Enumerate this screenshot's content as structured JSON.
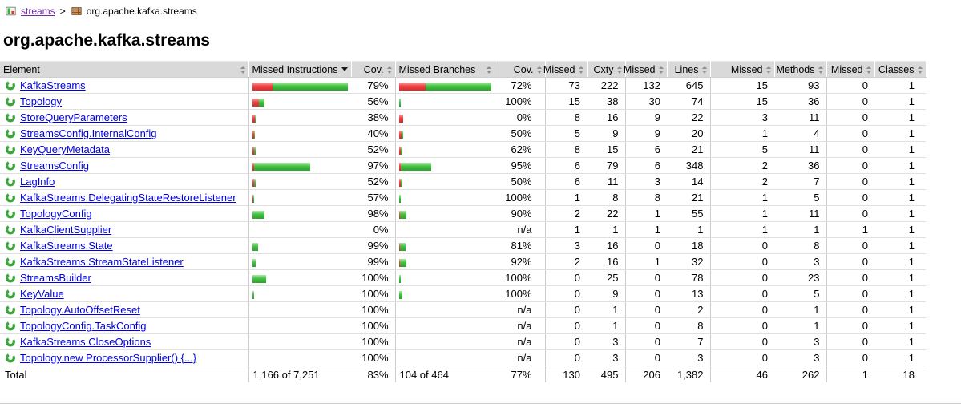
{
  "breadcrumb": {
    "session_label": "streams",
    "separator": ">",
    "package_label": "org.apache.kafka.streams"
  },
  "page": {
    "title": "org.apache.kafka.streams"
  },
  "table": {
    "colors": {
      "bar_red": "#e03c3c",
      "bar_green": "#35b135",
      "link": "#0000e0",
      "visited_link": "#6f2da8",
      "header_bg": "#d9d9d9"
    },
    "headers": {
      "element": "Element",
      "missed_instructions": "Missed Instructions",
      "instr_cov": "Cov.",
      "missed_branches": "Missed Branches",
      "branch_cov": "Cov.",
      "missed_cxty": "Missed",
      "cxty": "Cxty",
      "missed_lines": "Missed",
      "lines": "Lines",
      "missed_methods": "Missed",
      "methods": "Methods",
      "missed_classes": "Missed",
      "classes": "Classes"
    },
    "sort": {
      "column": "missed_instructions",
      "direction": "desc"
    },
    "rows": [
      {
        "name": "KafkaStreams",
        "instr_bar": {
          "red": 25,
          "green": 94
        },
        "instr_cov": "79%",
        "branch_bar": {
          "red": 33,
          "green": 82
        },
        "branch_cov": "72%",
        "missed_cxty": "73",
        "cxty": "222",
        "missed_lines": "132",
        "lines": "645",
        "missed_methods": "15",
        "methods": "93",
        "missed_classes": "0",
        "classes": "1"
      },
      {
        "name": "Topology",
        "instr_bar": {
          "red": 8,
          "green": 7
        },
        "instr_cov": "56%",
        "branch_bar": {
          "red": 0,
          "green": 2
        },
        "branch_cov": "100%",
        "missed_cxty": "15",
        "cxty": "38",
        "missed_lines": "30",
        "lines": "74",
        "missed_methods": "15",
        "methods": "36",
        "missed_classes": "0",
        "classes": "1"
      },
      {
        "name": "StoreQueryParameters",
        "instr_bar": {
          "red": 3,
          "green": 1
        },
        "instr_cov": "38%",
        "branch_bar": {
          "red": 5,
          "green": 0
        },
        "branch_cov": "0%",
        "missed_cxty": "8",
        "cxty": "16",
        "missed_lines": "9",
        "lines": "22",
        "missed_methods": "3",
        "methods": "11",
        "missed_classes": "0",
        "classes": "1"
      },
      {
        "name": "StreamsConfig.InternalConfig",
        "instr_bar": {
          "red": 2,
          "green": 1
        },
        "instr_cov": "40%",
        "branch_bar": {
          "red": 3,
          "green": 2
        },
        "branch_cov": "50%",
        "missed_cxty": "5",
        "cxty": "9",
        "missed_lines": "9",
        "lines": "20",
        "missed_methods": "1",
        "methods": "4",
        "missed_classes": "0",
        "classes": "1"
      },
      {
        "name": "KeyQueryMetadata",
        "instr_bar": {
          "red": 2,
          "green": 2
        },
        "instr_cov": "52%",
        "branch_bar": {
          "red": 2,
          "green": 2
        },
        "branch_cov": "62%",
        "missed_cxty": "8",
        "cxty": "15",
        "missed_lines": "6",
        "lines": "21",
        "missed_methods": "5",
        "methods": "11",
        "missed_classes": "0",
        "classes": "1"
      },
      {
        "name": "StreamsConfig",
        "instr_bar": {
          "red": 2,
          "green": 70
        },
        "instr_cov": "97%",
        "branch_bar": {
          "red": 2,
          "green": 38
        },
        "branch_cov": "95%",
        "missed_cxty": "6",
        "cxty": "79",
        "missed_lines": "6",
        "lines": "348",
        "missed_methods": "2",
        "methods": "36",
        "missed_classes": "0",
        "classes": "1"
      },
      {
        "name": "LagInfo",
        "instr_bar": {
          "red": 2,
          "green": 2
        },
        "instr_cov": "52%",
        "branch_bar": {
          "red": 2,
          "green": 2
        },
        "branch_cov": "50%",
        "missed_cxty": "6",
        "cxty": "11",
        "missed_lines": "3",
        "lines": "14",
        "missed_methods": "2",
        "methods": "7",
        "missed_classes": "0",
        "classes": "1"
      },
      {
        "name": "KafkaStreams.DelegatingStateRestoreListener",
        "instr_bar": {
          "red": 1,
          "green": 1
        },
        "instr_cov": "57%",
        "branch_bar": {
          "red": 0,
          "green": 2
        },
        "branch_cov": "100%",
        "missed_cxty": "1",
        "cxty": "8",
        "missed_lines": "8",
        "lines": "21",
        "missed_methods": "1",
        "methods": "5",
        "missed_classes": "0",
        "classes": "1"
      },
      {
        "name": "TopologyConfig",
        "instr_bar": {
          "red": 0,
          "green": 15
        },
        "instr_cov": "98%",
        "branch_bar": {
          "red": 1,
          "green": 8
        },
        "branch_cov": "90%",
        "missed_cxty": "2",
        "cxty": "22",
        "missed_lines": "1",
        "lines": "55",
        "missed_methods": "1",
        "methods": "11",
        "missed_classes": "0",
        "classes": "1"
      },
      {
        "name": "KafkaClientSupplier",
        "instr_bar": {
          "red": 0,
          "green": 0
        },
        "instr_cov": "0%",
        "branch_bar": {
          "red": 0,
          "green": 0
        },
        "branch_cov": "n/a",
        "missed_cxty": "1",
        "cxty": "1",
        "missed_lines": "1",
        "lines": "1",
        "missed_methods": "1",
        "methods": "1",
        "missed_classes": "1",
        "classes": "1"
      },
      {
        "name": "KafkaStreams.State",
        "instr_bar": {
          "red": 0,
          "green": 7
        },
        "instr_cov": "99%",
        "branch_bar": {
          "red": 1,
          "green": 7
        },
        "branch_cov": "81%",
        "missed_cxty": "3",
        "cxty": "16",
        "missed_lines": "0",
        "lines": "18",
        "missed_methods": "0",
        "methods": "8",
        "missed_classes": "0",
        "classes": "1"
      },
      {
        "name": "KafkaStreams.StreamStateListener",
        "instr_bar": {
          "red": 0,
          "green": 4
        },
        "instr_cov": "99%",
        "branch_bar": {
          "red": 1,
          "green": 8
        },
        "branch_cov": "92%",
        "missed_cxty": "2",
        "cxty": "16",
        "missed_lines": "1",
        "lines": "32",
        "missed_methods": "0",
        "methods": "3",
        "missed_classes": "0",
        "classes": "1"
      },
      {
        "name": "StreamsBuilder",
        "instr_bar": {
          "red": 0,
          "green": 17
        },
        "instr_cov": "100%",
        "branch_bar": {
          "red": 0,
          "green": 2
        },
        "branch_cov": "100%",
        "missed_cxty": "0",
        "cxty": "25",
        "missed_lines": "0",
        "lines": "78",
        "missed_methods": "0",
        "methods": "23",
        "missed_classes": "0",
        "classes": "1"
      },
      {
        "name": "KeyValue",
        "instr_bar": {
          "red": 0,
          "green": 2
        },
        "instr_cov": "100%",
        "branch_bar": {
          "red": 0,
          "green": 4
        },
        "branch_cov": "100%",
        "missed_cxty": "0",
        "cxty": "9",
        "missed_lines": "0",
        "lines": "13",
        "missed_methods": "0",
        "methods": "5",
        "missed_classes": "0",
        "classes": "1"
      },
      {
        "name": "Topology.AutoOffsetReset",
        "instr_bar": {
          "red": 0,
          "green": 0
        },
        "instr_cov": "100%",
        "branch_bar": {
          "red": 0,
          "green": 0
        },
        "branch_cov": "n/a",
        "missed_cxty": "0",
        "cxty": "1",
        "missed_lines": "0",
        "lines": "2",
        "missed_methods": "0",
        "methods": "1",
        "missed_classes": "0",
        "classes": "1"
      },
      {
        "name": "TopologyConfig.TaskConfig",
        "instr_bar": {
          "red": 0,
          "green": 0
        },
        "instr_cov": "100%",
        "branch_bar": {
          "red": 0,
          "green": 0
        },
        "branch_cov": "n/a",
        "missed_cxty": "0",
        "cxty": "1",
        "missed_lines": "0",
        "lines": "8",
        "missed_methods": "0",
        "methods": "1",
        "missed_classes": "0",
        "classes": "1"
      },
      {
        "name": "KafkaStreams.CloseOptions",
        "instr_bar": {
          "red": 0,
          "green": 0
        },
        "instr_cov": "100%",
        "branch_bar": {
          "red": 0,
          "green": 0
        },
        "branch_cov": "n/a",
        "missed_cxty": "0",
        "cxty": "3",
        "missed_lines": "0",
        "lines": "7",
        "missed_methods": "0",
        "methods": "3",
        "missed_classes": "0",
        "classes": "1"
      },
      {
        "name": "Topology.new ProcessorSupplier() {...}",
        "instr_bar": {
          "red": 0,
          "green": 0
        },
        "instr_cov": "100%",
        "branch_bar": {
          "red": 0,
          "green": 0
        },
        "branch_cov": "n/a",
        "missed_cxty": "0",
        "cxty": "3",
        "missed_lines": "0",
        "lines": "3",
        "missed_methods": "0",
        "methods": "3",
        "missed_classes": "0",
        "classes": "1"
      }
    ],
    "total": {
      "label": "Total",
      "instructions": "1,166 of 7,251",
      "instr_cov": "83%",
      "branches": "104 of 464",
      "branch_cov": "77%",
      "missed_cxty": "130",
      "cxty": "495",
      "missed_lines": "206",
      "lines": "1,382",
      "missed_methods": "46",
      "methods": "262",
      "missed_classes": "1",
      "classes": "18"
    }
  }
}
